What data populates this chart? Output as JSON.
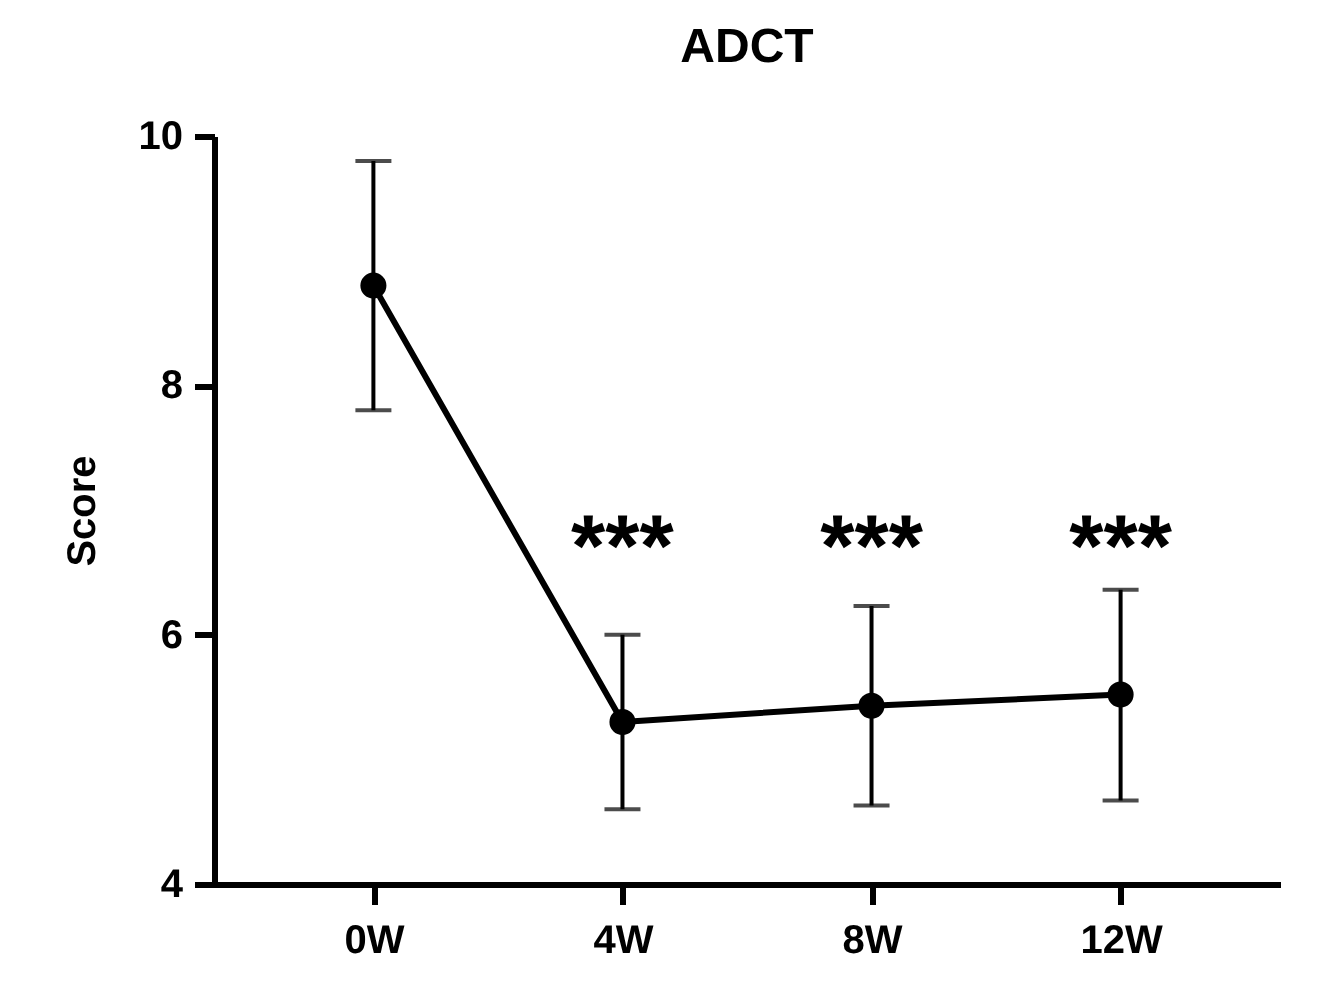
{
  "chart_data": {
    "type": "line",
    "title": "ADCT",
    "ylabel": "Score",
    "categories": [
      "0W",
      "4W",
      "8W",
      "12W"
    ],
    "series": [
      {
        "color": "#000000",
        "values": [
          8.8,
          5.3,
          5.43,
          5.52
        ],
        "errors": [
          [
            7.8,
            9.8
          ],
          [
            4.6,
            6.0
          ],
          [
            4.63,
            6.23
          ],
          [
            4.67,
            6.36
          ]
        ]
      }
    ],
    "ylim": [
      4,
      10
    ],
    "yticks": [
      4,
      6,
      8,
      10
    ],
    "grid": false,
    "marker": "circle",
    "line_style": "solid",
    "annotations": [
      "***",
      "***",
      "***"
    ]
  }
}
